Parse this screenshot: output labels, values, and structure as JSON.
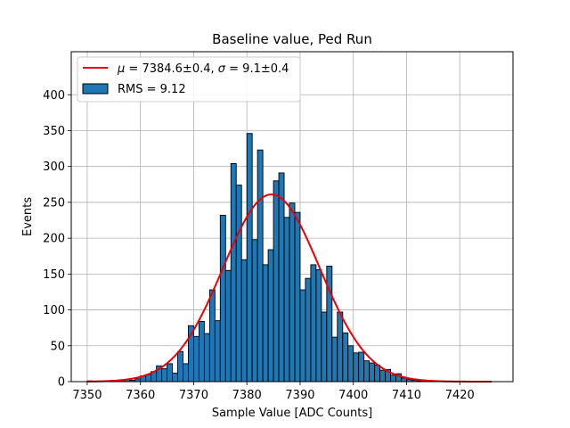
{
  "chart_data": {
    "type": "bar",
    "title": "Baseline value, Ped Run",
    "xlabel": "Sample Value [ADC Counts]",
    "ylabel": "Events",
    "xlim": [
      7347,
      7430
    ],
    "ylim": [
      0,
      460
    ],
    "xticks": [
      7350,
      7360,
      7370,
      7380,
      7390,
      7400,
      7410,
      7420
    ],
    "yticks": [
      0,
      50,
      100,
      150,
      200,
      250,
      300,
      350,
      400
    ],
    "grid": true,
    "legend_position": "top-left",
    "bar_color": "#1f77b4",
    "fit_color": "#e8000b",
    "histogram": {
      "name": "RMS = 9.12",
      "bin_width": 1,
      "bin_start": 7350,
      "counts": [
        1,
        0,
        0,
        1,
        1,
        0,
        2,
        3,
        2,
        4,
        8,
        10,
        14,
        22,
        18,
        25,
        12,
        42,
        25,
        78,
        63,
        84,
        67,
        128,
        85,
        232,
        155,
        304,
        274,
        170,
        346,
        198,
        323,
        163,
        184,
        280,
        291,
        229,
        249,
        236,
        128,
        144,
        163,
        156,
        97,
        161,
        62,
        97,
        68,
        50,
        40,
        41,
        29,
        26,
        23,
        16,
        17,
        9,
        11,
        5,
        3,
        2,
        1,
        1
      ]
    },
    "fit": {
      "name": "μ = 7384.6±0.4, σ = 9.1±0.4",
      "mu": 7384.6,
      "sigma": 9.1,
      "amplitude": 261,
      "x_range": [
        7350,
        7426
      ]
    }
  },
  "legend": {
    "fit_label_mu": "μ",
    "fit_label_mu_value": " = 7384.6±0.4, ",
    "fit_label_sigma": "σ",
    "fit_label_sigma_value": " = 9.1±0.4",
    "hist_label": "RMS = 9.12"
  }
}
